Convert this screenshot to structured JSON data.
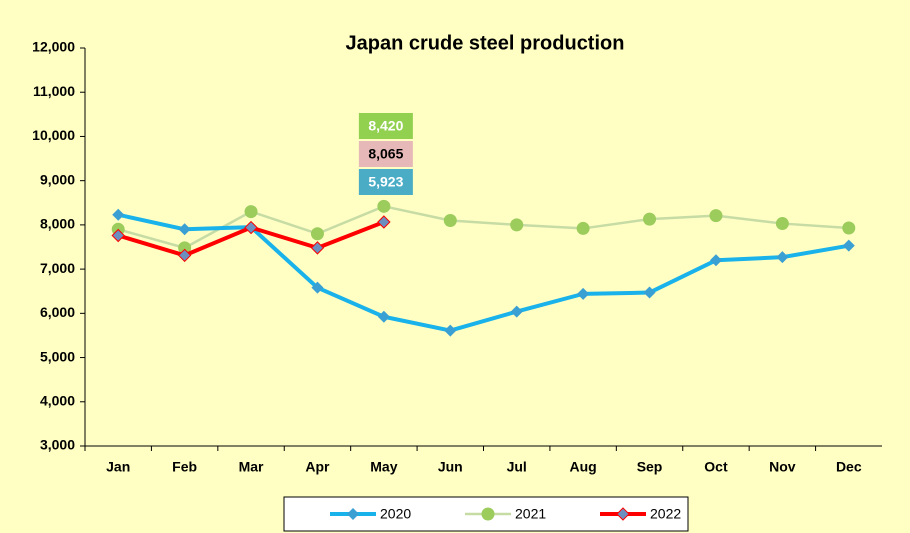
{
  "chart_data": {
    "type": "line",
    "title": "Japan crude steel production",
    "categories": [
      "Jan",
      "Feb",
      "Mar",
      "Apr",
      "May",
      "Jun",
      "Jul",
      "Aug",
      "Sep",
      "Oct",
      "Nov",
      "Dec"
    ],
    "series": [
      {
        "name": "2020",
        "color": "#1ab2ea",
        "values": [
          8230,
          7900,
          7950,
          6580,
          5923,
          5610,
          6040,
          6440,
          6470,
          7200,
          7270,
          7530
        ],
        "value_labels": [
          null,
          null,
          null,
          null,
          "5,923",
          null,
          null,
          null,
          null,
          null,
          null,
          null
        ]
      },
      {
        "name": "2021",
        "color": "#c6dca4",
        "values": [
          7900,
          7480,
          8300,
          7800,
          8420,
          8100,
          8000,
          7920,
          8130,
          8210,
          8030,
          7930
        ],
        "value_labels": [
          null,
          null,
          null,
          null,
          "8,420",
          null,
          null,
          null,
          null,
          null,
          null,
          null
        ]
      },
      {
        "name": "2022",
        "color": "#ff0000",
        "values": [
          7760,
          7310,
          7940,
          7480,
          8065,
          null,
          null,
          null,
          null,
          null,
          null,
          null
        ],
        "value_labels": [
          null,
          null,
          null,
          null,
          "8,065",
          null,
          null,
          null,
          null,
          null,
          null,
          null
        ]
      }
    ],
    "ylim": [
      3000,
      12000
    ],
    "yticks": [
      {
        "value": 3000,
        "label": "3,000"
      },
      {
        "value": 4000,
        "label": "4,000"
      },
      {
        "value": 5000,
        "label": "5,000"
      },
      {
        "value": 6000,
        "label": "6,000"
      },
      {
        "value": 7000,
        "label": "7,000"
      },
      {
        "value": 8000,
        "label": "8,000"
      },
      {
        "value": 9000,
        "label": "9,000"
      },
      {
        "value": 10000,
        "label": "10,000"
      },
      {
        "value": 11000,
        "label": "11,000"
      },
      {
        "value": 12000,
        "label": "12,000"
      }
    ],
    "grid": false,
    "legend": "bottom"
  }
}
